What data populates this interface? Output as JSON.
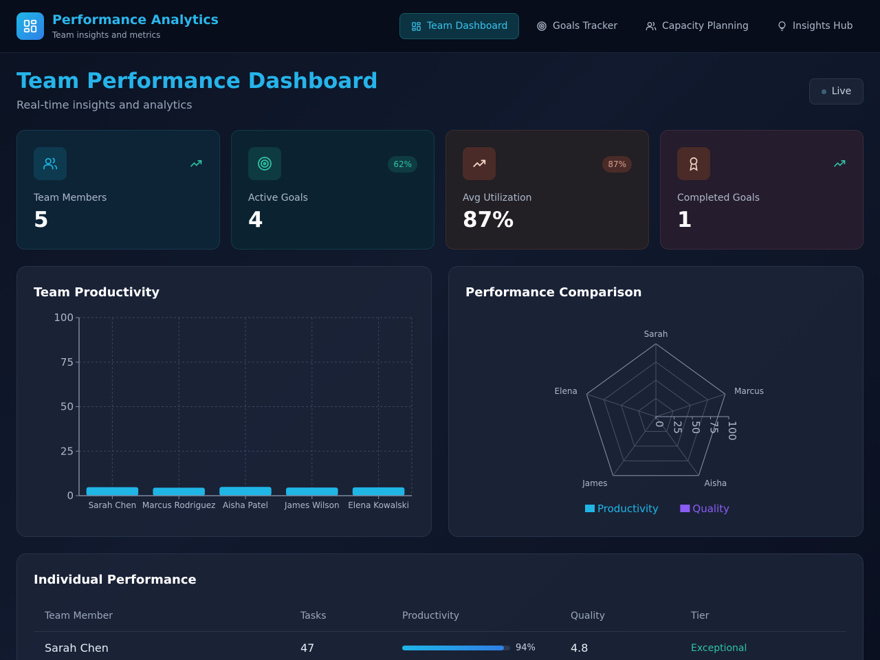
{
  "header": {
    "title": "Performance Analytics",
    "subtitle": "Team insights and metrics",
    "nav": [
      {
        "label": "Team Dashboard",
        "icon": "dashboard-icon",
        "active": true
      },
      {
        "label": "Goals Tracker",
        "icon": "target-icon",
        "active": false
      },
      {
        "label": "Capacity Planning",
        "icon": "users-icon",
        "active": false
      },
      {
        "label": "Insights Hub",
        "icon": "lightbulb-icon",
        "active": false
      }
    ]
  },
  "page": {
    "title": "Team Performance Dashboard",
    "subtitle": "Real-time insights and analytics",
    "status": "Live"
  },
  "stats": [
    {
      "label": "Team Members",
      "value": "5",
      "badge": null,
      "icon": "users-icon",
      "accent": "#1fb6e6"
    },
    {
      "label": "Active Goals",
      "value": "4",
      "badge": "62%",
      "icon": "target-icon",
      "accent": "#2ec4a3"
    },
    {
      "label": "Avg Utilization",
      "value": "87%",
      "badge": "87%",
      "icon": "trend-up-icon",
      "accent": "#f5d6c8"
    },
    {
      "label": "Completed Goals",
      "value": "1",
      "badge": null,
      "icon": "award-icon",
      "accent": "#f5d6c8"
    }
  ],
  "productivity_panel": {
    "title": "Team Productivity"
  },
  "comparison_panel": {
    "title": "Performance Comparison"
  },
  "chart_data": [
    {
      "type": "bar",
      "title": "Team Productivity",
      "categories": [
        "Sarah Chen",
        "Marcus Rodriguez",
        "Aisha Patel",
        "James Wilson",
        "Elena Kowalski"
      ],
      "series": [
        {
          "values": [
            4.8,
            4.5,
            4.9,
            4.6,
            4.7
          ]
        }
      ],
      "ylim": [
        0,
        100
      ],
      "yticks": [
        0,
        25,
        50,
        75,
        100
      ],
      "grid": true,
      "color": "#1fb6e6"
    },
    {
      "type": "radar",
      "title": "Performance Comparison",
      "axes": [
        "Sarah",
        "Marcus",
        "Aisha",
        "James",
        "Elena"
      ],
      "rlim": [
        0,
        100
      ],
      "rticks": [
        0,
        25,
        50,
        75,
        100
      ],
      "series": [
        {
          "name": "Productivity",
          "color": "#1fb6e6",
          "values": [
            null,
            null,
            null,
            null,
            null
          ]
        },
        {
          "name": "Quality",
          "color": "#8b5cf6",
          "values": [
            null,
            null,
            null,
            null,
            null
          ]
        }
      ],
      "legend": "bottom"
    }
  ],
  "table": {
    "title": "Individual Performance",
    "columns": [
      "Team Member",
      "Tasks",
      "Productivity",
      "Quality",
      "Tier"
    ],
    "rows": [
      {
        "member": "Sarah Chen",
        "tasks": "47",
        "productivity": 0.94,
        "productivity_label": "94%",
        "quality": "4.8",
        "tier": "Exceptional"
      }
    ]
  }
}
